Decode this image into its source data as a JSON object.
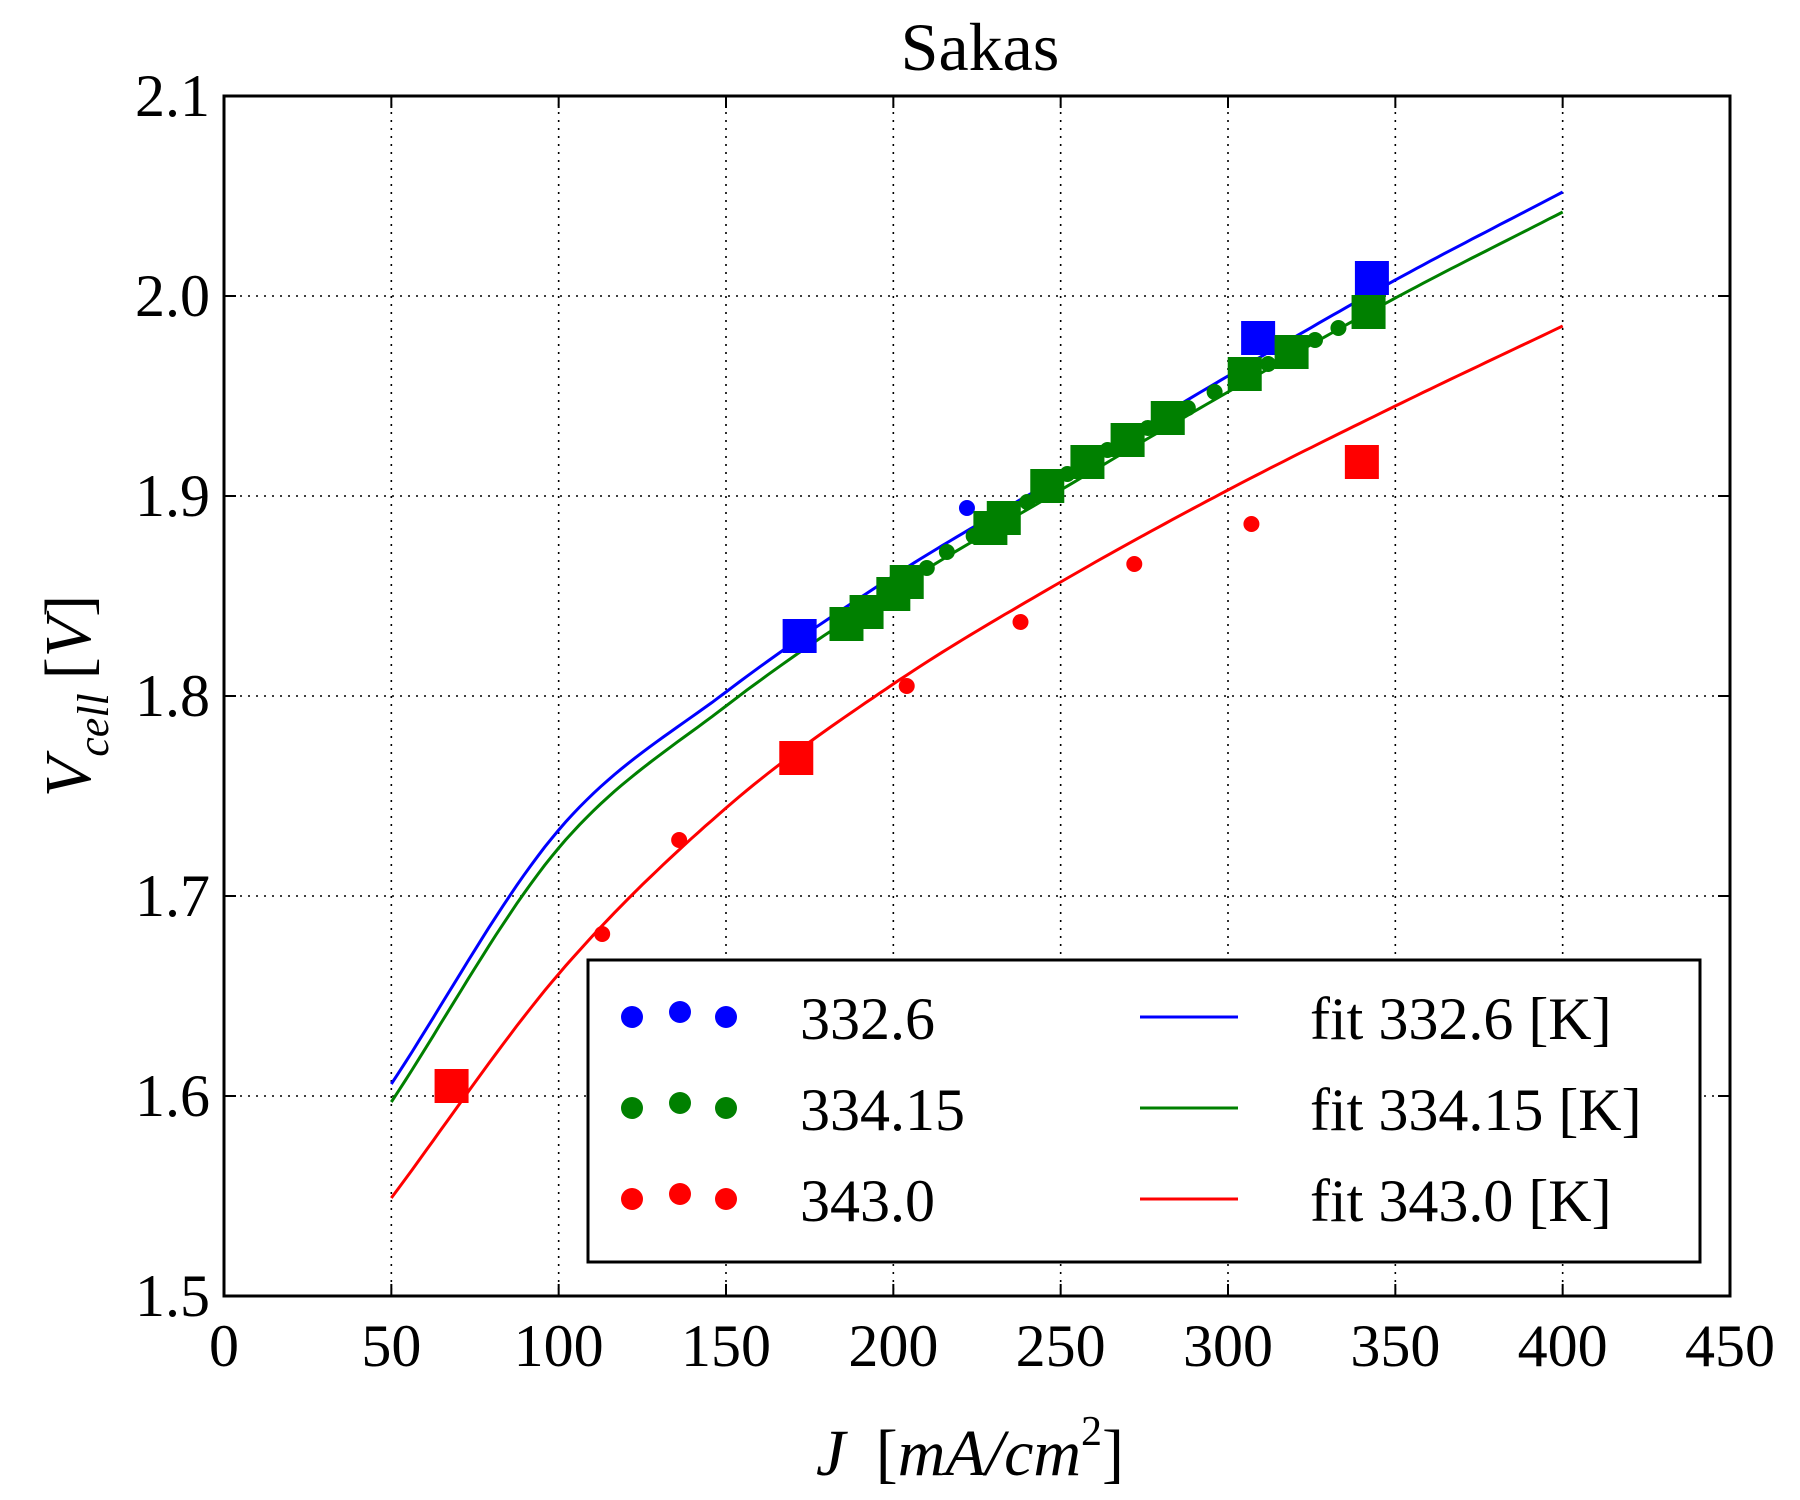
{
  "chart_data": {
    "type": "scatter",
    "title": "Sakas",
    "xlabel": {
      "main": "J",
      "unit": "mA/cm",
      "exp": "2"
    },
    "ylabel": {
      "main": "V",
      "sub": "cell",
      "unit": "V"
    },
    "xlim": [
      0,
      450
    ],
    "ylim": [
      1.5,
      2.1
    ],
    "xticks": [
      0,
      50,
      100,
      150,
      200,
      250,
      300,
      350,
      400,
      450
    ],
    "xtick_labels": [
      "0",
      "50",
      "100",
      "150",
      "200",
      "250",
      "300",
      "350",
      "400",
      "450"
    ],
    "yticks": [
      1.5,
      1.6,
      1.7,
      1.8,
      1.9,
      2.0,
      2.1
    ],
    "ytick_labels": [
      "1.5",
      "1.6",
      "1.7",
      "1.8",
      "1.9",
      "2.0",
      "2.1"
    ],
    "grid": true,
    "legend_position": "lower-right",
    "series": [
      {
        "name": "332.6",
        "color": "#0000ff",
        "markers": [
          {
            "x": 172,
            "y": 1.83,
            "marker": "square"
          },
          {
            "x": 309,
            "y": 1.979,
            "marker": "square"
          },
          {
            "x": 343,
            "y": 2.009,
            "marker": "square"
          },
          {
            "x": 222,
            "y": 1.894,
            "marker": "dot"
          }
        ]
      },
      {
        "name": "334.15",
        "color": "#008000",
        "markers": [
          {
            "x": 186,
            "y": 1.836,
            "marker": "square"
          },
          {
            "x": 192,
            "y": 1.842,
            "marker": "square"
          },
          {
            "x": 200,
            "y": 1.851,
            "marker": "square"
          },
          {
            "x": 204,
            "y": 1.857,
            "marker": "square"
          },
          {
            "x": 229,
            "y": 1.884,
            "marker": "square"
          },
          {
            "x": 233,
            "y": 1.889,
            "marker": "square"
          },
          {
            "x": 246,
            "y": 1.905,
            "marker": "square"
          },
          {
            "x": 258,
            "y": 1.917,
            "marker": "square"
          },
          {
            "x": 270,
            "y": 1.928,
            "marker": "square"
          },
          {
            "x": 282,
            "y": 1.939,
            "marker": "square"
          },
          {
            "x": 305,
            "y": 1.961,
            "marker": "square"
          },
          {
            "x": 319,
            "y": 1.972,
            "marker": "square"
          },
          {
            "x": 342,
            "y": 1.992,
            "marker": "square"
          },
          {
            "x": 210,
            "y": 1.864,
            "marker": "dot"
          },
          {
            "x": 216,
            "y": 1.872,
            "marker": "dot"
          },
          {
            "x": 224,
            "y": 1.88,
            "marker": "dot"
          },
          {
            "x": 240,
            "y": 1.897,
            "marker": "dot"
          },
          {
            "x": 252,
            "y": 1.911,
            "marker": "dot"
          },
          {
            "x": 264,
            "y": 1.923,
            "marker": "dot"
          },
          {
            "x": 276,
            "y": 1.934,
            "marker": "dot"
          },
          {
            "x": 288,
            "y": 1.944,
            "marker": "dot"
          },
          {
            "x": 296,
            "y": 1.952,
            "marker": "dot"
          },
          {
            "x": 312,
            "y": 1.966,
            "marker": "dot"
          },
          {
            "x": 326,
            "y": 1.978,
            "marker": "dot"
          },
          {
            "x": 333,
            "y": 1.984,
            "marker": "dot"
          }
        ]
      },
      {
        "name": "343.0",
        "color": "#ff0000",
        "markers": [
          {
            "x": 68,
            "y": 1.605,
            "marker": "square"
          },
          {
            "x": 171,
            "y": 1.769,
            "marker": "square"
          },
          {
            "x": 340,
            "y": 1.917,
            "marker": "square"
          },
          {
            "x": 113,
            "y": 1.681,
            "marker": "dot"
          },
          {
            "x": 136,
            "y": 1.728,
            "marker": "dot"
          },
          {
            "x": 204,
            "y": 1.805,
            "marker": "dot"
          },
          {
            "x": 238,
            "y": 1.837,
            "marker": "dot"
          },
          {
            "x": 272,
            "y": 1.866,
            "marker": "dot"
          },
          {
            "x": 307,
            "y": 1.886,
            "marker": "dot"
          }
        ]
      }
    ],
    "fit_series": [
      {
        "name": "fit 332.6 [K]",
        "color": "#0000ff",
        "x": [
          50,
          100,
          150,
          200,
          250,
          300,
          350,
          400
        ],
        "y": [
          1.606,
          1.733,
          1.802,
          1.86,
          1.91,
          1.96,
          2.008,
          2.052
        ]
      },
      {
        "name": "fit 334.15 [K]",
        "color": "#008000",
        "x": [
          50,
          100,
          150,
          200,
          250,
          300,
          350,
          400
        ],
        "y": [
          1.597,
          1.724,
          1.795,
          1.853,
          1.903,
          1.952,
          1.999,
          2.042
        ]
      },
      {
        "name": "fit 343.0 [K]",
        "color": "#ff0000",
        "x": [
          50,
          100,
          150,
          200,
          250,
          300,
          350,
          400
        ],
        "y": [
          1.549,
          1.661,
          1.744,
          1.806,
          1.857,
          1.903,
          1.945,
          1.985
        ]
      }
    ]
  }
}
